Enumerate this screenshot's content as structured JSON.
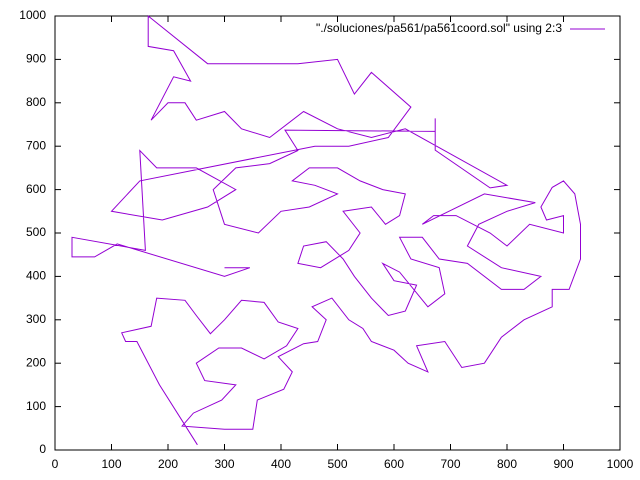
{
  "chart_data": {
    "type": "line",
    "x": [
      252,
      185,
      145,
      125,
      118,
      170,
      180,
      230,
      250,
      275,
      300,
      330,
      370,
      395,
      430,
      410,
      370,
      330,
      290,
      250,
      265,
      320,
      295,
      245,
      225,
      300,
      350,
      358,
      405,
      420,
      395,
      440,
      465,
      480,
      455,
      490,
      520,
      545,
      560,
      600,
      625,
      660,
      640,
      690,
      720,
      760,
      790,
      830,
      880,
      880,
      910,
      930,
      930,
      920,
      900,
      880,
      860,
      870,
      900,
      900,
      840,
      800,
      770,
      710,
      670,
      650,
      760,
      850,
      800,
      750,
      730,
      790,
      860,
      830,
      790,
      730,
      680,
      650,
      610,
      630,
      680,
      690,
      660,
      610,
      580,
      600,
      640,
      620,
      590,
      560,
      530,
      510,
      480,
      440,
      430,
      470,
      520,
      540,
      510,
      560,
      585,
      610,
      620,
      580,
      540,
      500,
      450,
      420,
      460,
      500,
      450,
      400,
      360,
      300,
      280,
      320,
      380,
      430,
      407,
      673,
      673,
      673,
      770,
      800,
      620,
      560,
      500,
      440,
      380,
      330,
      300,
      250,
      230,
      200,
      170,
      210,
      240,
      210,
      165,
      165,
      270,
      430,
      500,
      530,
      560,
      630,
      590,
      520,
      460,
      150,
      100,
      190,
      270,
      320,
      250,
      180,
      150,
      160,
      30,
      30,
      70,
      110,
      300,
      345,
      300
    ],
    "series": [
      {
        "name": "\"./soluciones/pa561/pa561coord.sol\" using 2:3",
        "color": "#9400d3",
        "values": [
          12,
          150,
          250,
          250,
          270,
          285,
          350,
          345,
          310,
          268,
          300,
          345,
          340,
          295,
          280,
          240,
          210,
          235,
          235,
          200,
          160,
          150,
          115,
          85,
          55,
          48,
          48,
          115,
          140,
          180,
          215,
          245,
          250,
          300,
          330,
          350,
          300,
          280,
          250,
          230,
          200,
          180,
          240,
          250,
          190,
          200,
          260,
          300,
          330,
          370,
          370,
          440,
          520,
          590,
          620,
          605,
          560,
          530,
          540,
          500,
          520,
          470,
          500,
          540,
          540,
          520,
          590,
          570,
          550,
          520,
          470,
          420,
          400,
          370,
          370,
          430,
          440,
          490,
          490,
          440,
          420,
          360,
          330,
          410,
          430,
          390,
          380,
          320,
          310,
          350,
          400,
          440,
          480,
          470,
          430,
          420,
          460,
          500,
          550,
          560,
          520,
          540,
          590,
          600,
          620,
          650,
          650,
          620,
          610,
          590,
          560,
          550,
          500,
          520,
          600,
          650,
          660,
          690,
          737,
          734,
          764,
          691,
          604,
          610,
          740,
          720,
          740,
          780,
          720,
          740,
          780,
          760,
          800,
          800,
          760,
          860,
          850,
          920,
          930,
          1000,
          890,
          890,
          900,
          820,
          870,
          790,
          720,
          700,
          700,
          620,
          550,
          530,
          560,
          600,
          650,
          650,
          690,
          460,
          490,
          445,
          445,
          475,
          400,
          420,
          420
        ]
      }
    ],
    "xlim": [
      0,
      1000
    ],
    "ylim": [
      0,
      1000
    ],
    "xticks": [
      0,
      100,
      200,
      300,
      400,
      500,
      600,
      700,
      800,
      900,
      1000
    ],
    "yticks": [
      0,
      100,
      200,
      300,
      400,
      500,
      600,
      700,
      800,
      900,
      1000
    ],
    "legend": "top-right"
  }
}
